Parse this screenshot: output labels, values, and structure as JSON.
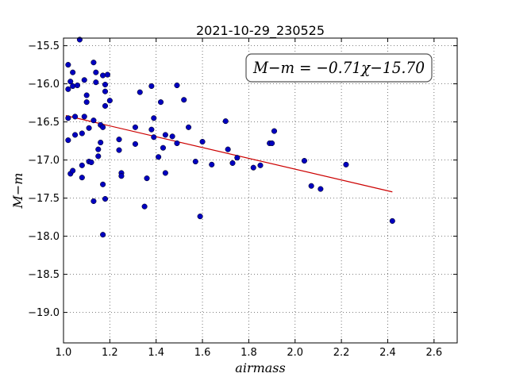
{
  "chart_data": {
    "type": "scatter",
    "title": "2021-10-29_230525",
    "xlabel": "airmass",
    "ylabel": "M−m",
    "xlim": [
      1.0,
      2.7
    ],
    "ylim": [
      -19.4,
      -15.4
    ],
    "y_inverted": true,
    "grid": true,
    "xticks": [
      1.0,
      1.2,
      1.4,
      1.6,
      1.8,
      2.0,
      2.2,
      2.4,
      2.6
    ],
    "xtick_labels": [
      "1.0",
      "1.2",
      "1.4",
      "1.6",
      "1.8",
      "2.0",
      "2.2",
      "2.4",
      "2.6"
    ],
    "yticks": [
      -15.5,
      -16.0,
      -16.5,
      -17.0,
      -17.5,
      -18.0,
      -18.5,
      -19.0
    ],
    "ytick_labels": [
      "−15.5",
      "−16.0",
      "−16.5",
      "−17.0",
      "−17.5",
      "−18.0",
      "−18.5",
      "−19.0"
    ],
    "annotation": "M−m = −0.71χ−15.70",
    "point_color": "#0000bf",
    "fit_color": "#cc0000",
    "fit": {
      "slope": -0.71,
      "intercept": -15.7,
      "x_range": [
        1.01,
        2.42
      ]
    },
    "points": [
      [
        1.02,
        -15.75
      ],
      [
        1.03,
        -15.97
      ],
      [
        1.04,
        -15.85
      ],
      [
        1.04,
        -16.03
      ],
      [
        1.02,
        -16.07
      ],
      [
        1.07,
        -15.42
      ],
      [
        1.06,
        -16.02
      ],
      [
        1.09,
        -15.95
      ],
      [
        1.1,
        -16.15
      ],
      [
        1.1,
        -16.24
      ],
      [
        1.02,
        -16.45
      ],
      [
        1.05,
        -16.43
      ],
      [
        1.09,
        -16.43
      ],
      [
        1.02,
        -16.74
      ],
      [
        1.05,
        -16.67
      ],
      [
        1.08,
        -16.65
      ],
      [
        1.11,
        -16.58
      ],
      [
        1.03,
        -17.18
      ],
      [
        1.04,
        -17.14
      ],
      [
        1.08,
        -17.07
      ],
      [
        1.08,
        -17.23
      ],
      [
        1.11,
        -17.02
      ],
      [
        1.12,
        -17.03
      ],
      [
        1.13,
        -17.54
      ],
      [
        1.13,
        -15.72
      ],
      [
        1.14,
        -15.85
      ],
      [
        1.14,
        -15.98
      ],
      [
        1.17,
        -15.89
      ],
      [
        1.19,
        -15.88
      ],
      [
        1.18,
        -16.01
      ],
      [
        1.18,
        -16.1
      ],
      [
        1.2,
        -16.22
      ],
      [
        1.18,
        -16.29
      ],
      [
        1.13,
        -16.48
      ],
      [
        1.16,
        -16.54
      ],
      [
        1.17,
        -16.57
      ],
      [
        1.16,
        -16.77
      ],
      [
        1.15,
        -16.86
      ],
      [
        1.15,
        -16.95
      ],
      [
        1.17,
        -17.32
      ],
      [
        1.18,
        -17.51
      ],
      [
        1.17,
        -17.98
      ],
      [
        1.24,
        -16.73
      ],
      [
        1.24,
        -16.87
      ],
      [
        1.25,
        -17.17
      ],
      [
        1.25,
        -17.21
      ],
      [
        1.31,
        -16.57
      ],
      [
        1.31,
        -16.79
      ],
      [
        1.33,
        -16.11
      ],
      [
        1.35,
        -17.61
      ],
      [
        1.36,
        -17.24
      ],
      [
        1.38,
        -16.03
      ],
      [
        1.38,
        -16.6
      ],
      [
        1.39,
        -16.45
      ],
      [
        1.39,
        -16.7
      ],
      [
        1.41,
        -16.96
      ],
      [
        1.42,
        -16.24
      ],
      [
        1.43,
        -16.84
      ],
      [
        1.44,
        -16.67
      ],
      [
        1.44,
        -17.17
      ],
      [
        1.47,
        -16.69
      ],
      [
        1.49,
        -16.02
      ],
      [
        1.49,
        -16.78
      ],
      [
        1.52,
        -16.21
      ],
      [
        1.54,
        -16.57
      ],
      [
        1.57,
        -17.02
      ],
      [
        1.59,
        -17.74
      ],
      [
        1.6,
        -16.76
      ],
      [
        1.64,
        -17.06
      ],
      [
        1.7,
        -16.49
      ],
      [
        1.71,
        -16.86
      ],
      [
        1.73,
        -17.04
      ],
      [
        1.75,
        -16.97
      ],
      [
        1.82,
        -17.1
      ],
      [
        1.85,
        -17.07
      ],
      [
        1.89,
        -16.78
      ],
      [
        1.9,
        -16.78
      ],
      [
        1.91,
        -16.62
      ],
      [
        2.04,
        -17.01
      ],
      [
        2.07,
        -17.34
      ],
      [
        2.11,
        -17.38
      ],
      [
        2.22,
        -17.06
      ],
      [
        2.42,
        -17.8
      ]
    ]
  }
}
